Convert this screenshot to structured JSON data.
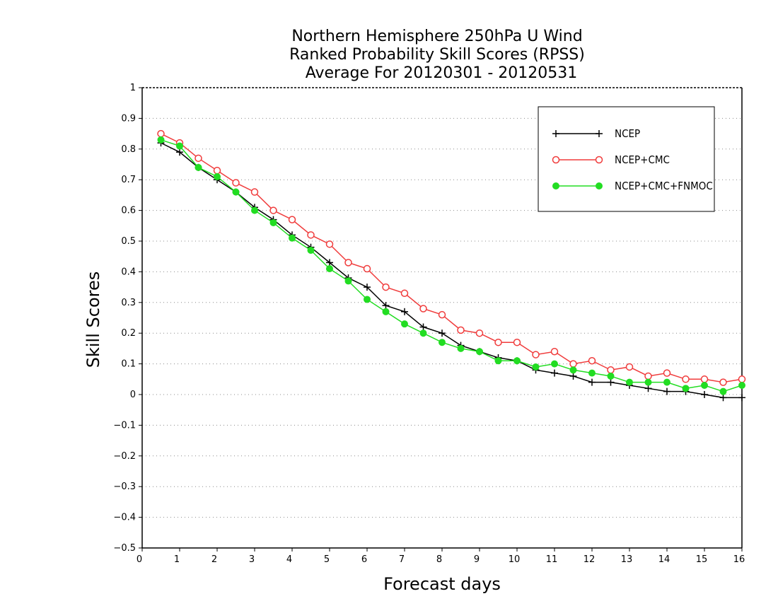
{
  "chart_data": {
    "type": "line",
    "title": [
      "Northern Hemisphere 250hPa U Wind",
      "Ranked Probability Skill Scores (RPSS)",
      "Average For 20120301 - 20120531"
    ],
    "xlabel": "Forecast days",
    "ylabel": "Skill Scores",
    "xlim": [
      0,
      16
    ],
    "ylim": [
      -0.5,
      1
    ],
    "xticks": [
      0,
      1,
      2,
      3,
      4,
      5,
      6,
      7,
      8,
      9,
      10,
      11,
      12,
      13,
      14,
      15,
      16
    ],
    "yticks": [
      -0.5,
      -0.4,
      -0.3,
      -0.2,
      -0.1,
      0,
      0.1,
      0.2,
      0.3,
      0.4,
      0.5,
      0.6,
      0.7,
      0.8,
      0.9,
      1
    ],
    "ytick_labels": [
      "−0.5",
      "−0.4",
      "−0.3",
      "−0.2",
      "−0.1",
      "0",
      "0.1",
      "0.2",
      "0.3",
      "0.4",
      "0.5",
      "0.6",
      "0.7",
      "0.8",
      "0.9",
      "1"
    ],
    "grid": "horizontal dotted",
    "legend_position": "top-right",
    "x": [
      0.5,
      1,
      1.5,
      2,
      2.5,
      3,
      3.5,
      4,
      4.5,
      5,
      5.5,
      6,
      6.5,
      7,
      7.5,
      8,
      8.5,
      9,
      9.5,
      10,
      10.5,
      11,
      11.5,
      12,
      12.5,
      13,
      13.5,
      14,
      14.5,
      15,
      15.5,
      16
    ],
    "series": [
      {
        "name": "NCEP",
        "color": "#000000",
        "marker": "plus",
        "values": [
          0.82,
          0.79,
          0.74,
          0.7,
          0.66,
          0.61,
          0.57,
          0.52,
          0.48,
          0.43,
          0.38,
          0.35,
          0.29,
          0.27,
          0.22,
          0.2,
          0.16,
          0.14,
          0.12,
          0.11,
          0.08,
          0.07,
          0.06,
          0.04,
          0.04,
          0.03,
          0.02,
          0.01,
          0.01,
          0.0,
          -0.01,
          -0.01
        ]
      },
      {
        "name": "NCEP+CMC",
        "color": "#f03c3c",
        "marker": "open-circle",
        "values": [
          0.85,
          0.82,
          0.77,
          0.73,
          0.69,
          0.66,
          0.6,
          0.57,
          0.52,
          0.49,
          0.43,
          0.41,
          0.35,
          0.33,
          0.28,
          0.26,
          0.21,
          0.2,
          0.17,
          0.17,
          0.13,
          0.14,
          0.1,
          0.11,
          0.08,
          0.09,
          0.06,
          0.07,
          0.05,
          0.05,
          0.04,
          0.05
        ]
      },
      {
        "name": "NCEP+CMC+FNMOC",
        "color": "#22dd22",
        "marker": "filled-circle",
        "values": [
          0.83,
          0.81,
          0.74,
          0.71,
          0.66,
          0.6,
          0.56,
          0.51,
          0.47,
          0.41,
          0.37,
          0.31,
          0.27,
          0.23,
          0.2,
          0.17,
          0.15,
          0.14,
          0.11,
          0.11,
          0.09,
          0.1,
          0.08,
          0.07,
          0.06,
          0.04,
          0.04,
          0.04,
          0.02,
          0.03,
          0.01,
          0.03
        ]
      }
    ]
  }
}
